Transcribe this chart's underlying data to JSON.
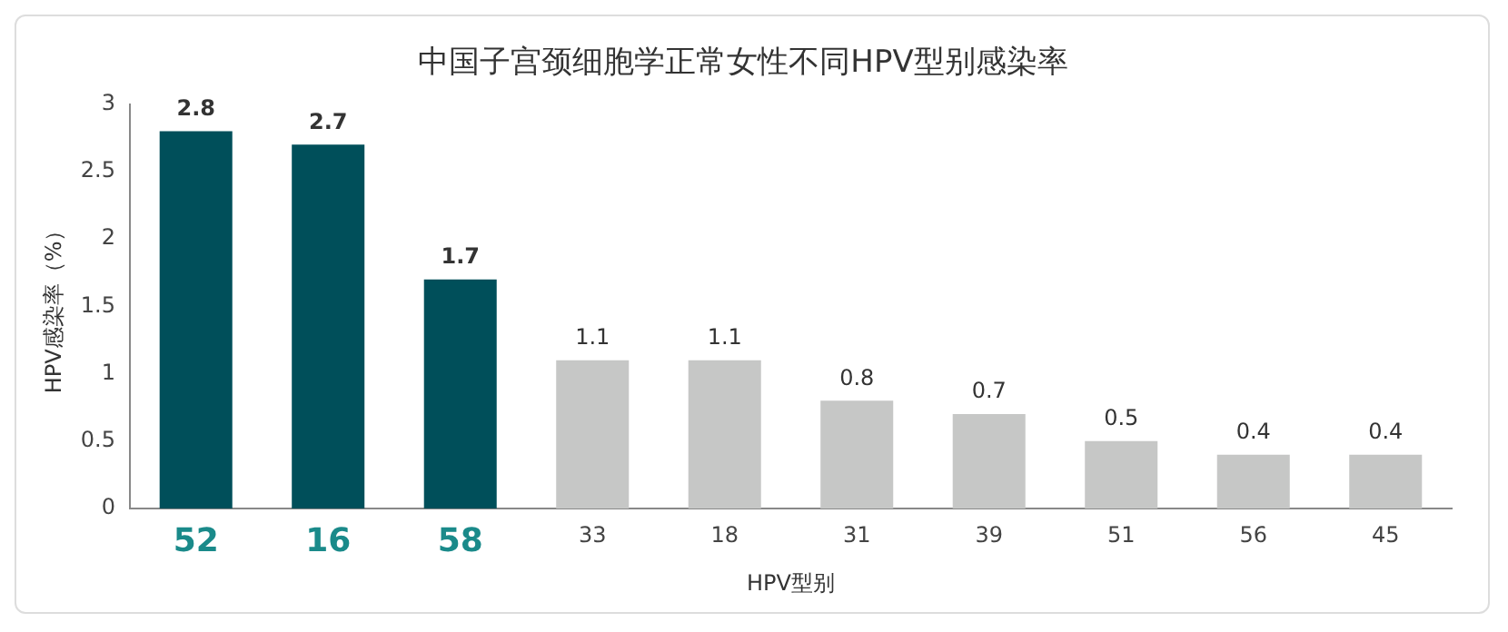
{
  "chart_data": {
    "type": "bar",
    "title": "中国子宫颈细胞学正常女性不同HPV型别感染率",
    "xlabel": "HPV型别",
    "ylabel": "HPV感染率（%）",
    "categories": [
      "52",
      "16",
      "58",
      "33",
      "18",
      "31",
      "39",
      "51",
      "56",
      "45"
    ],
    "values": [
      2.8,
      2.7,
      1.7,
      1.1,
      1.1,
      0.8,
      0.7,
      0.5,
      0.4,
      0.4
    ],
    "colors": [
      "#004f5a",
      "#004f5a",
      "#004f5a",
      "#c6c7c6",
      "#c6c7c6",
      "#c6c7c6",
      "#c6c7c6",
      "#c6c7c6",
      "#c6c7c6",
      "#c6c7c6"
    ],
    "ylim": [
      0,
      3
    ],
    "yticks": [
      0,
      0.5,
      1,
      1.5,
      2,
      2.5,
      3
    ],
    "grid": false,
    "legend": false,
    "data_labels": true
  }
}
